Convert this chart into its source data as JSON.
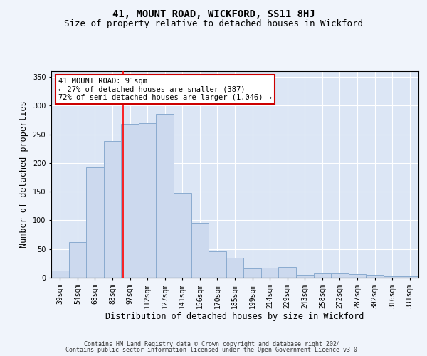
{
  "title": "41, MOUNT ROAD, WICKFORD, SS11 8HJ",
  "subtitle": "Size of property relative to detached houses in Wickford",
  "xlabel": "Distribution of detached houses by size in Wickford",
  "ylabel": "Number of detached properties",
  "categories": [
    "39sqm",
    "54sqm",
    "68sqm",
    "83sqm",
    "97sqm",
    "112sqm",
    "127sqm",
    "141sqm",
    "156sqm",
    "170sqm",
    "185sqm",
    "199sqm",
    "214sqm",
    "229sqm",
    "243sqm",
    "258sqm",
    "272sqm",
    "287sqm",
    "302sqm",
    "316sqm",
    "331sqm"
  ],
  "values": [
    12,
    62,
    192,
    238,
    268,
    270,
    285,
    148,
    96,
    46,
    35,
    16,
    18,
    19,
    5,
    8,
    7,
    6,
    5,
    2,
    3
  ],
  "bar_color": "#ccd9ee",
  "bar_edge_color": "#8aabcf",
  "red_line_x": 3.62,
  "annotation_line1": "41 MOUNT ROAD: 91sqm",
  "annotation_line2": "← 27% of detached houses are smaller (387)",
  "annotation_line3": "72% of semi-detached houses are larger (1,046) →",
  "annotation_box_color": "#ffffff",
  "annotation_box_edge_color": "#cc0000",
  "ylim": [
    0,
    360
  ],
  "yticks": [
    0,
    50,
    100,
    150,
    200,
    250,
    300,
    350
  ],
  "plot_bg_color": "#dce6f5",
  "fig_bg_color": "#f0f4fb",
  "footer_line1": "Contains HM Land Registry data © Crown copyright and database right 2024.",
  "footer_line2": "Contains public sector information licensed under the Open Government Licence v3.0.",
  "title_fontsize": 10,
  "subtitle_fontsize": 9,
  "tick_fontsize": 7,
  "label_fontsize": 8.5,
  "annotation_fontsize": 7.5,
  "footer_fontsize": 6
}
